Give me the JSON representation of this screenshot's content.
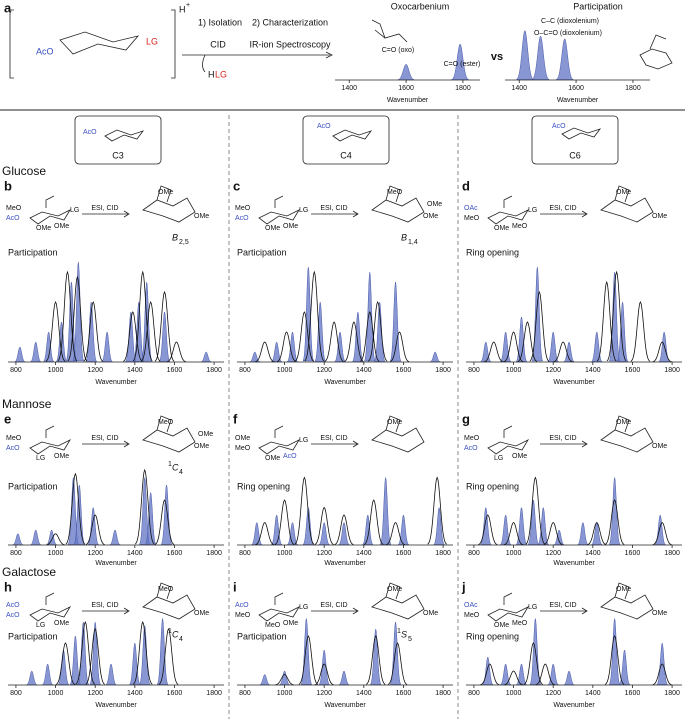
{
  "panel_a": {
    "letter": "a",
    "cation": "H",
    "charge": "+",
    "ring_sub": "AcO",
    "lg": "LG",
    "steps": [
      "1) Isolation",
      "2) Characterization"
    ],
    "cid": "CID",
    "lost": [
      "H",
      "LG"
    ],
    "method": "IR-ion Spectroscopy",
    "vs": "vs",
    "spectra": [
      {
        "title": "Oxocarbenium",
        "labels": [
          "C=O (oxo)",
          "C=O (ester)"
        ],
        "xlabel": "Wavenumber",
        "xlim": [
          1350,
          1860
        ],
        "xticks": [
          1400,
          1600,
          1800
        ],
        "peaks": [
          {
            "x": 1600,
            "h": 0.35
          },
          {
            "x": 1790,
            "h": 0.8
          }
        ]
      },
      {
        "title": "Participation",
        "labels": [
          "C–C (dioxolenium)",
          "O–C=O (dioxolenium)"
        ],
        "xlabel": "Wavenumber",
        "xlim": [
          1350,
          1860
        ],
        "xticks": [
          1400,
          1600,
          1800
        ],
        "peaks": [
          {
            "x": 1420,
            "h": 0.9
          },
          {
            "x": 1475,
            "h": 0.8
          },
          {
            "x": 1560,
            "h": 0.75
          }
        ]
      }
    ]
  },
  "boxes": [
    {
      "sub": "AcO",
      "label": "C3"
    },
    {
      "sub": "AcO",
      "label": "C4"
    },
    {
      "sub": "AcO",
      "label": "C6"
    }
  ],
  "rows": [
    {
      "title": "Glucose",
      "panels": [
        {
          "letter": "b",
          "reactant": [
            "MeO",
            "AcO",
            "OMe",
            "OMe",
            "LG"
          ],
          "reagent": "ESI, CID",
          "product": [
            "OMe",
            "OMe"
          ],
          "conformer": [
            "",
            "B",
            "2,5"
          ],
          "outcome": "Participation",
          "xlabel": "Wavenumber",
          "xlim": [
            760,
            1850
          ],
          "xticks": [
            800,
            1000,
            1200,
            1400,
            1600,
            1800
          ],
          "computed": [
            {
              "x": 820,
              "h": 0.15
            },
            {
              "x": 900,
              "h": 0.2
            },
            {
              "x": 965,
              "h": 0.3
            },
            {
              "x": 1030,
              "h": 0.4
            },
            {
              "x": 1080,
              "h": 0.8
            },
            {
              "x": 1115,
              "h": 1
            },
            {
              "x": 1180,
              "h": 0.6
            },
            {
              "x": 1260,
              "h": 0.3
            },
            {
              "x": 1380,
              "h": 0.5
            },
            {
              "x": 1420,
              "h": 0.6
            },
            {
              "x": 1460,
              "h": 0.8
            },
            {
              "x": 1550,
              "h": 0.5
            },
            {
              "x": 1760,
              "h": 0.1
            }
          ],
          "experimental": [
            {
              "x": 1000,
              "h": 0.6
            },
            {
              "x": 1060,
              "h": 0.9
            },
            {
              "x": 1110,
              "h": 0.85
            },
            {
              "x": 1190,
              "h": 0.6
            },
            {
              "x": 1390,
              "h": 0.5
            },
            {
              "x": 1440,
              "h": 0.9
            },
            {
              "x": 1480,
              "h": 0.6
            },
            {
              "x": 1550,
              "h": 0.7
            },
            {
              "x": 1610,
              "h": 0.2
            }
          ]
        },
        {
          "letter": "c",
          "reactant": [
            "MeO",
            "AcO",
            "OMe",
            "OMe",
            "LG"
          ],
          "reagent": "ESI, CID",
          "product": [
            "MeO",
            "OMe",
            "OMe"
          ],
          "conformer": [
            "",
            "B",
            "1,4"
          ],
          "outcome": "Participation",
          "xlabel": "Wavenumber",
          "xlim": [
            760,
            1850
          ],
          "xticks": [
            800,
            1000,
            1200,
            1400,
            1600,
            1800
          ],
          "computed": [
            {
              "x": 850,
              "h": 0.1
            },
            {
              "x": 960,
              "h": 0.2
            },
            {
              "x": 1040,
              "h": 0.3
            },
            {
              "x": 1120,
              "h": 0.95
            },
            {
              "x": 1180,
              "h": 0.6
            },
            {
              "x": 1280,
              "h": 0.3
            },
            {
              "x": 1370,
              "h": 0.5
            },
            {
              "x": 1430,
              "h": 0.9
            },
            {
              "x": 1480,
              "h": 0.6
            },
            {
              "x": 1560,
              "h": 0.8
            },
            {
              "x": 1760,
              "h": 0.1
            }
          ],
          "experimental": [
            {
              "x": 900,
              "h": 0.2
            },
            {
              "x": 1010,
              "h": 0.3
            },
            {
              "x": 1100,
              "h": 0.5
            },
            {
              "x": 1150,
              "h": 0.9
            },
            {
              "x": 1250,
              "h": 0.4
            },
            {
              "x": 1350,
              "h": 0.4
            },
            {
              "x": 1430,
              "h": 0.5
            },
            {
              "x": 1470,
              "h": 0.6
            },
            {
              "x": 1580,
              "h": 0.3
            }
          ]
        },
        {
          "letter": "d",
          "reactant": [
            "OAc",
            "MeO",
            "MeO",
            "OMe",
            "LG"
          ],
          "reagent": "ESI, CID",
          "product": [
            "OMe",
            "OMe"
          ],
          "conformer": [
            "",
            "",
            ""
          ],
          "outcome": "Ring opening",
          "xlabel": "Wavenumber",
          "xlim": [
            760,
            1850
          ],
          "xticks": [
            800,
            1000,
            1200,
            1400,
            1600,
            1800
          ],
          "computed": [
            {
              "x": 860,
              "h": 0.2
            },
            {
              "x": 960,
              "h": 0.3
            },
            {
              "x": 1040,
              "h": 0.45
            },
            {
              "x": 1120,
              "h": 0.95
            },
            {
              "x": 1200,
              "h": 0.3
            },
            {
              "x": 1280,
              "h": 0.2
            },
            {
              "x": 1420,
              "h": 0.3
            },
            {
              "x": 1510,
              "h": 0.9
            },
            {
              "x": 1550,
              "h": 0.6
            },
            {
              "x": 1760,
              "h": 0.3
            }
          ],
          "experimental": [
            {
              "x": 900,
              "h": 0.2
            },
            {
              "x": 1000,
              "h": 0.3
            },
            {
              "x": 1070,
              "h": 0.4
            },
            {
              "x": 1130,
              "h": 0.7
            },
            {
              "x": 1250,
              "h": 0.2
            },
            {
              "x": 1470,
              "h": 0.8
            },
            {
              "x": 1520,
              "h": 0.9
            },
            {
              "x": 1640,
              "h": 0.6
            },
            {
              "x": 1750,
              "h": 0.2
            }
          ]
        }
      ]
    },
    {
      "title": "Mannose",
      "panels": [
        {
          "letter": "e",
          "reactant": [
            "MeO",
            "AcO",
            "OMe",
            "LG"
          ],
          "reagent": "ESI, CID",
          "product": [
            "MeO",
            "OMe",
            "OMe"
          ],
          "conformer": [
            "1",
            "C",
            "4"
          ],
          "outcome": "Participation",
          "xlabel": "Wavenumber",
          "xlim": [
            760,
            1850
          ],
          "xticks": [
            800,
            1000,
            1200,
            1400,
            1600,
            1800
          ],
          "computed": [
            {
              "x": 810,
              "h": 0.15
            },
            {
              "x": 900,
              "h": 0.2
            },
            {
              "x": 980,
              "h": 0.2
            },
            {
              "x": 1090,
              "h": 0.9
            },
            {
              "x": 1120,
              "h": 0.8
            },
            {
              "x": 1190,
              "h": 0.5
            },
            {
              "x": 1300,
              "h": 0.2
            },
            {
              "x": 1450,
              "h": 0.9
            },
            {
              "x": 1480,
              "h": 0.7
            },
            {
              "x": 1560,
              "h": 0.8
            }
          ],
          "experimental": [
            {
              "x": 1000,
              "h": 0.15
            },
            {
              "x": 1100,
              "h": 0.95
            },
            {
              "x": 1200,
              "h": 0.4
            },
            {
              "x": 1450,
              "h": 1
            },
            {
              "x": 1550,
              "h": 0.6
            }
          ]
        },
        {
          "letter": "f",
          "reactant": [
            "OMe",
            "MeO",
            "AcO",
            "OMe",
            "LG"
          ],
          "reagent": "ESI, CID",
          "product": [
            "OMe"
          ],
          "conformer": [
            "",
            "",
            ""
          ],
          "outcome": "Ring opening",
          "xlabel": "Wavenumber",
          "xlim": [
            760,
            1850
          ],
          "xticks": [
            800,
            1000,
            1200,
            1400,
            1600,
            1800
          ],
          "computed": [
            {
              "x": 860,
              "h": 0.3
            },
            {
              "x": 960,
              "h": 0.4
            },
            {
              "x": 1040,
              "h": 0.3
            },
            {
              "x": 1120,
              "h": 0.5
            },
            {
              "x": 1200,
              "h": 0.3
            },
            {
              "x": 1300,
              "h": 0.3
            },
            {
              "x": 1420,
              "h": 0.4
            },
            {
              "x": 1510,
              "h": 0.9
            },
            {
              "x": 1600,
              "h": 0.4
            },
            {
              "x": 1780,
              "h": 0.5
            }
          ],
          "experimental": [
            {
              "x": 900,
              "h": 0.3
            },
            {
              "x": 1000,
              "h": 0.6
            },
            {
              "x": 1100,
              "h": 0.9
            },
            {
              "x": 1200,
              "h": 0.5
            },
            {
              "x": 1300,
              "h": 0.4
            },
            {
              "x": 1450,
              "h": 0.6
            },
            {
              "x": 1560,
              "h": 0.3
            },
            {
              "x": 1770,
              "h": 0.9
            }
          ]
        },
        {
          "letter": "g",
          "reactant": [
            "MeO",
            "AcO",
            "OMe",
            "LG"
          ],
          "reagent": "ESI, CID",
          "product": [
            "OMe",
            "OMe"
          ],
          "conformer": [
            "",
            "",
            ""
          ],
          "outcome": "Ring opening",
          "xlabel": "Wavenumber",
          "xlim": [
            760,
            1850
          ],
          "xticks": [
            800,
            1000,
            1200,
            1400,
            1600,
            1800
          ],
          "computed": [
            {
              "x": 860,
              "h": 0.5
            },
            {
              "x": 960,
              "h": 0.4
            },
            {
              "x": 1040,
              "h": 0.5
            },
            {
              "x": 1100,
              "h": 0.6
            },
            {
              "x": 1150,
              "h": 0.5
            },
            {
              "x": 1230,
              "h": 0.2
            },
            {
              "x": 1350,
              "h": 0.3
            },
            {
              "x": 1420,
              "h": 0.3
            },
            {
              "x": 1510,
              "h": 0.9
            },
            {
              "x": 1740,
              "h": 0.4
            }
          ],
          "experimental": [
            {
              "x": 870,
              "h": 0.4
            },
            {
              "x": 1000,
              "h": 0.3
            },
            {
              "x": 1110,
              "h": 0.9
            },
            {
              "x": 1200,
              "h": 0.3
            },
            {
              "x": 1420,
              "h": 0.3
            },
            {
              "x": 1510,
              "h": 0.6
            },
            {
              "x": 1750,
              "h": 0.3
            }
          ]
        }
      ]
    },
    {
      "title": "Galactose",
      "panels": [
        {
          "letter": "h",
          "reactant": [
            "AcO",
            "AcO",
            "OMe",
            "LG"
          ],
          "reagent": "ESI, CID",
          "product": [
            "MeO",
            "OMe"
          ],
          "conformer": [
            "1",
            "C",
            "4"
          ],
          "outcome": "Participation",
          "xlabel": "Wavenumber",
          "xlim": [
            760,
            1850
          ],
          "xticks": [
            800,
            1000,
            1200,
            1400,
            1600,
            1800
          ],
          "computed": [
            {
              "x": 880,
              "h": 0.2
            },
            {
              "x": 960,
              "h": 0.3
            },
            {
              "x": 1040,
              "h": 0.5
            },
            {
              "x": 1100,
              "h": 0.7
            },
            {
              "x": 1140,
              "h": 0.9
            },
            {
              "x": 1200,
              "h": 0.9
            },
            {
              "x": 1280,
              "h": 0.3
            },
            {
              "x": 1400,
              "h": 0.6
            },
            {
              "x": 1450,
              "h": 0.85
            },
            {
              "x": 1540,
              "h": 0.95
            }
          ],
          "experimental": [
            {
              "x": 1050,
              "h": 0.6
            },
            {
              "x": 1150,
              "h": 0.9
            },
            {
              "x": 1200,
              "h": 0.8
            },
            {
              "x": 1440,
              "h": 0.9
            },
            {
              "x": 1570,
              "h": 0.8
            }
          ]
        },
        {
          "letter": "i",
          "reactant": [
            "AcO",
            "MeO",
            "OMe",
            "MeO",
            "LG"
          ],
          "reagent": "ESI, CID",
          "product": [
            "OMe",
            "OMe"
          ],
          "conformer": [
            "1",
            "S",
            "5"
          ],
          "outcome": "Participation",
          "xlabel": "Wavenumber",
          "xlim": [
            760,
            1850
          ],
          "xticks": [
            800,
            1000,
            1200,
            1400,
            1600,
            1800
          ],
          "computed": [
            {
              "x": 900,
              "h": 0.15
            },
            {
              "x": 1000,
              "h": 0.2
            },
            {
              "x": 1110,
              "h": 0.95
            },
            {
              "x": 1200,
              "h": 0.5
            },
            {
              "x": 1300,
              "h": 0.2
            },
            {
              "x": 1460,
              "h": 0.8
            },
            {
              "x": 1560,
              "h": 0.9
            }
          ],
          "experimental": [
            {
              "x": 1000,
              "h": 0.15
            },
            {
              "x": 1120,
              "h": 0.7
            },
            {
              "x": 1200,
              "h": 0.3
            },
            {
              "x": 1460,
              "h": 0.7
            },
            {
              "x": 1570,
              "h": 0.6
            }
          ]
        },
        {
          "letter": "j",
          "reactant": [
            "OAc",
            "MeO",
            "MeO",
            "OMe",
            "LG"
          ],
          "reagent": "ESI, CID",
          "product": [
            "OMe",
            "OMe"
          ],
          "conformer": [
            "",
            "",
            ""
          ],
          "outcome": "Ring opening",
          "xlabel": "Wavenumber",
          "xlim": [
            760,
            1850
          ],
          "xticks": [
            800,
            1000,
            1200,
            1400,
            1600,
            1800
          ],
          "computed": [
            {
              "x": 870,
              "h": 0.4
            },
            {
              "x": 960,
              "h": 0.3
            },
            {
              "x": 1040,
              "h": 0.3
            },
            {
              "x": 1110,
              "h": 0.95
            },
            {
              "x": 1200,
              "h": 0.3
            },
            {
              "x": 1280,
              "h": 0.2
            },
            {
              "x": 1510,
              "h": 0.95
            },
            {
              "x": 1560,
              "h": 0.5
            },
            {
              "x": 1750,
              "h": 0.6
            }
          ],
          "experimental": [
            {
              "x": 880,
              "h": 0.3
            },
            {
              "x": 1000,
              "h": 0.2
            },
            {
              "x": 1100,
              "h": 0.6
            },
            {
              "x": 1160,
              "h": 0.3
            },
            {
              "x": 1510,
              "h": 0.7
            },
            {
              "x": 1750,
              "h": 0.3
            }
          ]
        }
      ]
    }
  ]
}
